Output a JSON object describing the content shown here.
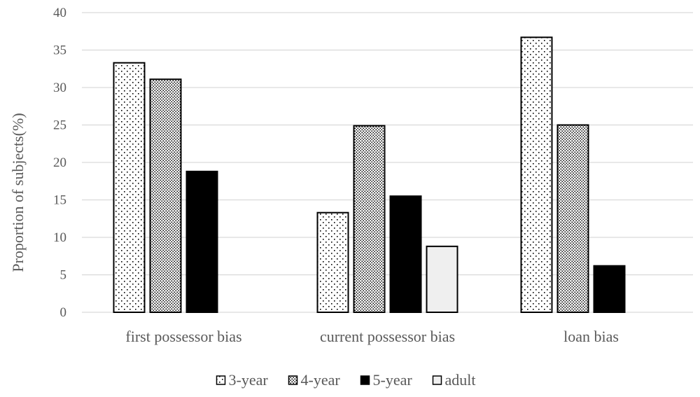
{
  "chart_data": {
    "type": "bar",
    "ylabel": "Proportion of subjects(%)",
    "xlabel": "",
    "ylim": [
      0,
      40
    ],
    "ytick_step": 5,
    "yticks": [
      "0",
      "5",
      "10",
      "15",
      "20",
      "25",
      "30",
      "35",
      "40"
    ],
    "grid": true,
    "legend_position": "bottom",
    "categories": [
      "first possessor bias",
      "current possessor bias",
      "loan bias"
    ],
    "series": [
      {
        "name": "3-year",
        "values": [
          33.3,
          13.3,
          36.7
        ],
        "pattern": "sparse-dots",
        "color": "#ffffff"
      },
      {
        "name": "4-year",
        "values": [
          31.1,
          24.9,
          25.0
        ],
        "pattern": "dense-dots",
        "color": "#ffffff"
      },
      {
        "name": "5-year",
        "values": [
          18.8,
          15.5,
          6.2
        ],
        "pattern": "solid",
        "color": "#000000"
      },
      {
        "name": "adult",
        "values": [
          0,
          8.8,
          0
        ],
        "pattern": "solid",
        "color": "#efefef"
      }
    ]
  }
}
